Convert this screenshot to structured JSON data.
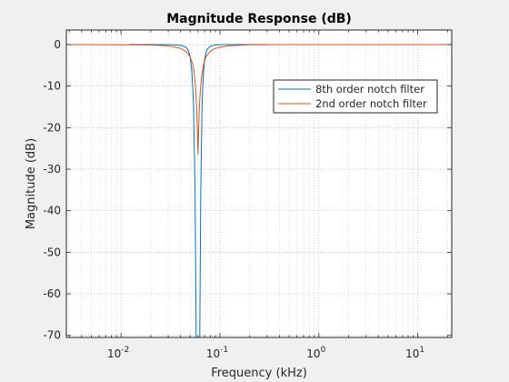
{
  "chart_data": {
    "type": "line",
    "title": "Magnitude Response (dB)",
    "xlabel": "Frequency (kHz)",
    "ylabel": "Magnitude (dB)",
    "xscale": "log",
    "xlim": [
      0.0028,
      22.05
    ],
    "ylim": [
      -70.5,
      3.5
    ],
    "x_ticks": [
      {
        "value": 0.01,
        "base": "10",
        "exp": "-2"
      },
      {
        "value": 0.1,
        "base": "10",
        "exp": "-1"
      },
      {
        "value": 1,
        "base": "10",
        "exp": "0"
      },
      {
        "value": 10,
        "base": "10",
        "exp": "1"
      }
    ],
    "y_ticks": [
      0,
      -10,
      -20,
      -30,
      -40,
      -50,
      -60,
      -70
    ],
    "grid": true,
    "minor_grid": true,
    "legend_position": "top-right",
    "series": [
      {
        "name": "8th order notch filter",
        "color": "#0072BD",
        "points": [
          [
            0.012,
            0
          ],
          [
            0.03,
            0
          ],
          [
            0.04,
            -0.2
          ],
          [
            0.045,
            -0.6
          ],
          [
            0.048,
            -1.5
          ],
          [
            0.05,
            -3
          ],
          [
            0.052,
            -6.5
          ],
          [
            0.054,
            -14
          ],
          [
            0.056,
            -35
          ],
          [
            0.0575,
            -70.5
          ],
          [
            0.0625,
            -70.5
          ],
          [
            0.064,
            -35
          ],
          [
            0.066,
            -14
          ],
          [
            0.068,
            -7
          ],
          [
            0.07,
            -3.5
          ],
          [
            0.074,
            -1.2
          ],
          [
            0.08,
            -0.4
          ],
          [
            0.09,
            -0.1
          ],
          [
            0.11,
            0
          ],
          [
            0.3,
            0
          ]
        ]
      },
      {
        "name": "2nd order notch filter",
        "color": "#D95319",
        "points": [
          [
            0.0028,
            0
          ],
          [
            0.02,
            -0.1
          ],
          [
            0.03,
            -0.3
          ],
          [
            0.04,
            -0.9
          ],
          [
            0.046,
            -1.8
          ],
          [
            0.05,
            -3
          ],
          [
            0.053,
            -4.7
          ],
          [
            0.055,
            -7
          ],
          [
            0.057,
            -11
          ],
          [
            0.058,
            -15
          ],
          [
            0.059,
            -20
          ],
          [
            0.06,
            -26.5
          ],
          [
            0.061,
            -20
          ],
          [
            0.062,
            -15
          ],
          [
            0.063,
            -12
          ],
          [
            0.065,
            -8
          ],
          [
            0.068,
            -5
          ],
          [
            0.072,
            -3
          ],
          [
            0.08,
            -1.6
          ],
          [
            0.09,
            -0.9
          ],
          [
            0.12,
            -0.3
          ],
          [
            0.2,
            -0.05
          ],
          [
            0.5,
            0
          ],
          [
            22.05,
            0
          ]
        ]
      }
    ]
  }
}
